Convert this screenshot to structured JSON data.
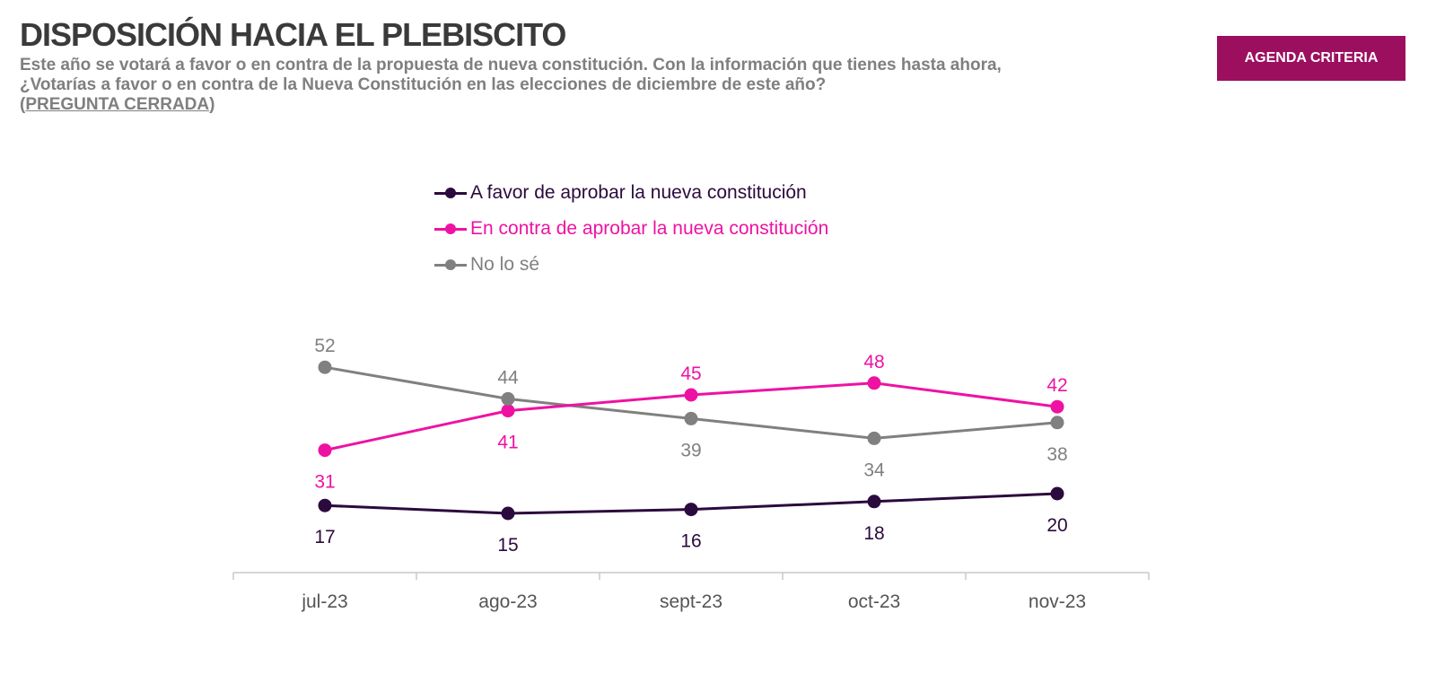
{
  "header": {
    "title": "DISPOSICIÓN HACIA EL PLEBISCITO",
    "subtitle_line1": "Este año se votará a favor o en contra de la propuesta de nueva constitución. Con la información que tienes hasta ahora,",
    "subtitle_line2": "¿Votarías a favor o en contra de la Nueva Constitución en las elecciones de diciembre de este año?",
    "subtitle_note": "PREGUNTA CERRADA",
    "badge": "AGENDA CRITERIA"
  },
  "colors": {
    "badge": "#9c0f5f",
    "favor": "#2b0a3d",
    "contra": "#ee12a3",
    "nolose": "#808080"
  },
  "chart_data": {
    "type": "line",
    "categories": [
      "jul-23",
      "ago-23",
      "sept-23",
      "oct-23",
      "nov-23"
    ],
    "legend_placement": "top-center",
    "grid": false,
    "series": [
      {
        "name": "A favor de aprobar la nueva constitución",
        "color": "#2b0a3d",
        "values": [
          17,
          15,
          16,
          18,
          20
        ],
        "label_pos": [
          "below",
          "below",
          "below",
          "below",
          "below"
        ]
      },
      {
        "name": "En contra de aprobar la nueva constitución",
        "color": "#ee12a3",
        "values": [
          31,
          41,
          45,
          48,
          42
        ],
        "label_pos": [
          "below",
          "below",
          "above",
          "above",
          "above"
        ]
      },
      {
        "name": "No lo sé",
        "color": "#808080",
        "values": [
          52,
          44,
          39,
          34,
          38
        ],
        "label_pos": [
          "above",
          "above",
          "below",
          "below",
          "below"
        ]
      }
    ]
  }
}
